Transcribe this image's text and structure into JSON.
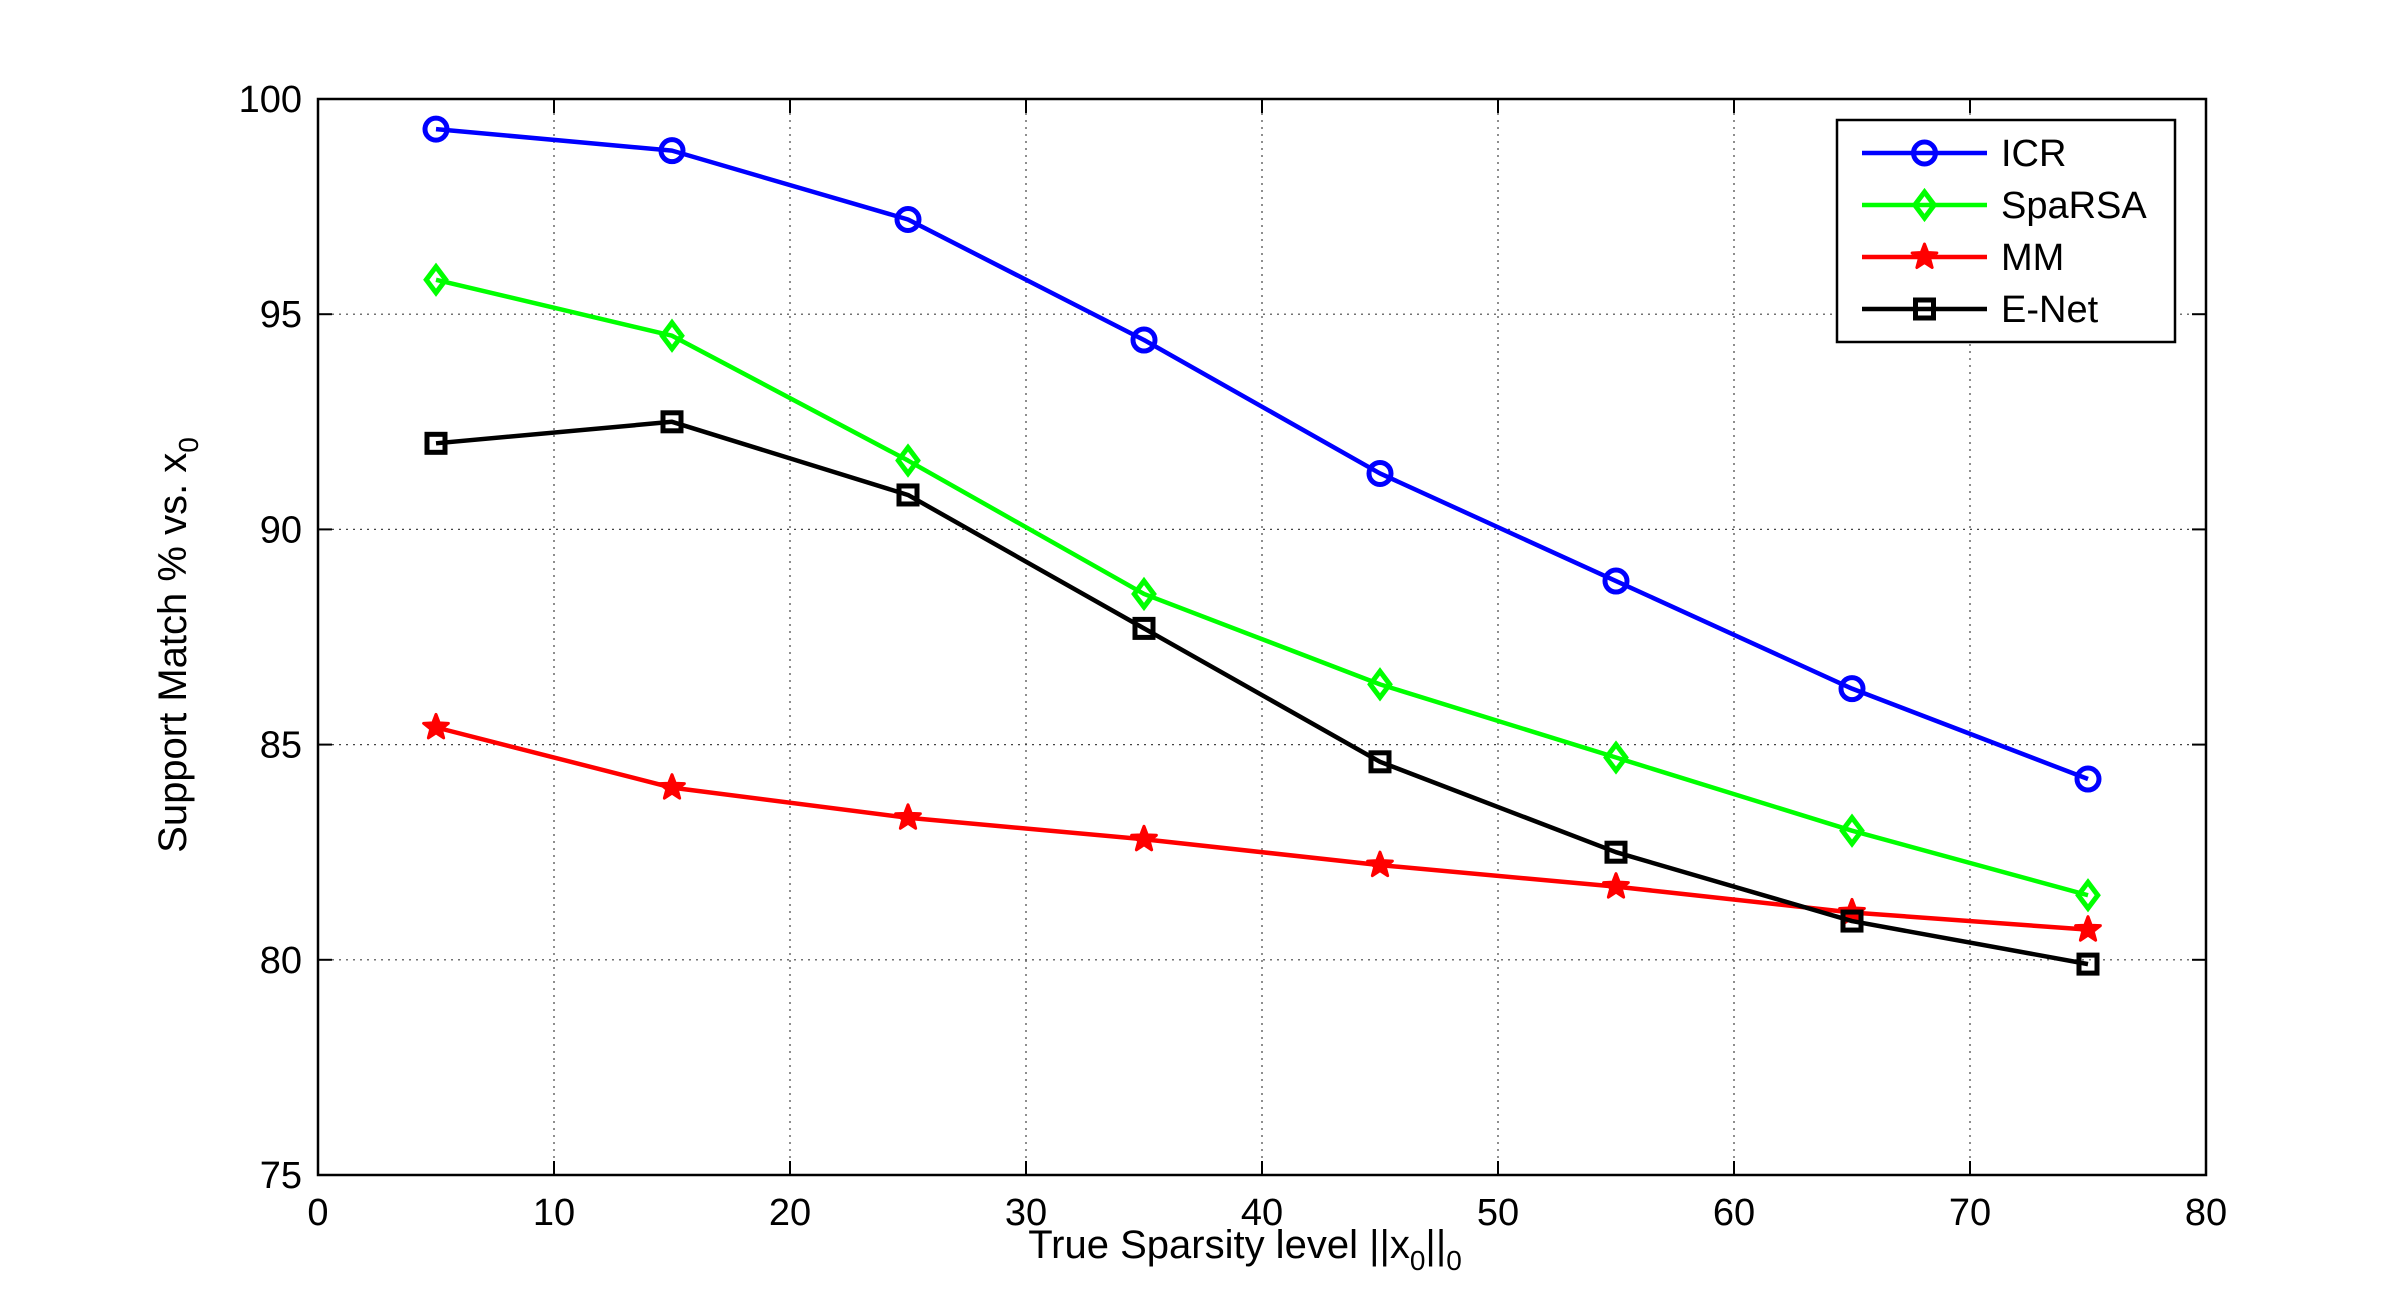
{
  "chart_data": {
    "type": "line",
    "title": "",
    "xlabel": {
      "prefix": "True Sparsity level ||x",
      "sub1": "0",
      "middle": "||",
      "sub2": "0"
    },
    "ylabel": {
      "prefix": "Support Match % vs. x",
      "sub": "0"
    },
    "xlim": [
      0,
      80
    ],
    "ylim": [
      75,
      100
    ],
    "xticks": [
      0,
      10,
      20,
      30,
      40,
      50,
      60,
      70,
      80
    ],
    "yticks": [
      75,
      80,
      85,
      90,
      95,
      100
    ],
    "grid": true,
    "legend_position": "top-right",
    "x": [
      5,
      15,
      25,
      35,
      45,
      55,
      65,
      75
    ],
    "series": [
      {
        "name": "ICR",
        "marker": "circle",
        "color": "#0000ff",
        "values": [
          99.3,
          98.8,
          97.2,
          94.4,
          91.3,
          88.8,
          86.3,
          84.2
        ]
      },
      {
        "name": "SpaRSA",
        "marker": "diamond",
        "color": "#00ff00",
        "values": [
          95.8,
          94.5,
          91.6,
          88.5,
          86.4,
          84.7,
          83.0,
          81.5
        ]
      },
      {
        "name": "MM",
        "marker": "star",
        "color": "#ff0000",
        "values": [
          85.4,
          84.0,
          83.3,
          82.8,
          82.2,
          81.7,
          81.1,
          80.7
        ]
      },
      {
        "name": "E-Net",
        "marker": "square",
        "color": "#000000",
        "values": [
          92.0,
          92.5,
          90.8,
          87.7,
          84.6,
          82.5,
          80.9,
          79.9
        ]
      }
    ]
  }
}
